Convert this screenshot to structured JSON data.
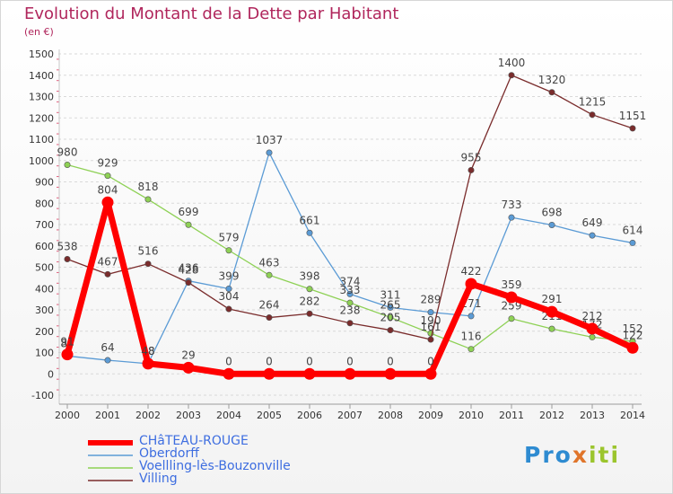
{
  "header": {
    "title": "Evolution du Montant de la Dette par Habitant",
    "subtitle": "(en €)"
  },
  "brand": {
    "logo_text": "Proxiti",
    "colors": [
      "#2e8bd1",
      "#e0752b",
      "#9bc52d"
    ]
  },
  "chart_data": {
    "type": "line",
    "title": "Evolution du Montant de la Dette par Habitant",
    "subtitle": "(en €)",
    "xlabel": "",
    "ylabel": "",
    "x": [
      "2000",
      "2001",
      "2002",
      "2003",
      "2004",
      "2005",
      "2006",
      "2007",
      "2008",
      "2009",
      "2010",
      "2011",
      "2012",
      "2013",
      "2014"
    ],
    "ylim": [
      -100,
      1500
    ],
    "yticks": [
      "-100",
      "0",
      "100",
      "200",
      "300",
      "400",
      "500",
      "600",
      "700",
      "800",
      "900",
      "1000",
      "1100",
      "1200",
      "1300",
      "1400",
      "1500"
    ],
    "grid": "horizontal dashed",
    "legend_position": "bottom-left",
    "series": [
      {
        "name": "CHâTEAU-ROUGE",
        "color": "#ff0000",
        "emphasis": true,
        "values": [
          91,
          804,
          48,
          29,
          0,
          0,
          0,
          0,
          0,
          0,
          422,
          359,
          291,
          212,
          122
        ]
      },
      {
        "name": "Oberdorff",
        "color": "#5b9bd5",
        "values": [
          84,
          64,
          48,
          436,
          399,
          1037,
          661,
          374,
          311,
          289,
          271,
          733,
          698,
          649,
          614
        ]
      },
      {
        "name": "Voellling-lès-Bouzonville",
        "color": "#8ed155",
        "values": [
          980,
          929,
          818,
          699,
          579,
          463,
          398,
          333,
          265,
          190,
          116,
          259,
          211,
          172,
          152
        ]
      },
      {
        "name": "Villing",
        "color": "#7a2c2c",
        "values": [
          538,
          467,
          516,
          428,
          304,
          264,
          282,
          238,
          205,
          161,
          955,
          1400,
          1320,
          1215,
          1151
        ]
      }
    ]
  }
}
